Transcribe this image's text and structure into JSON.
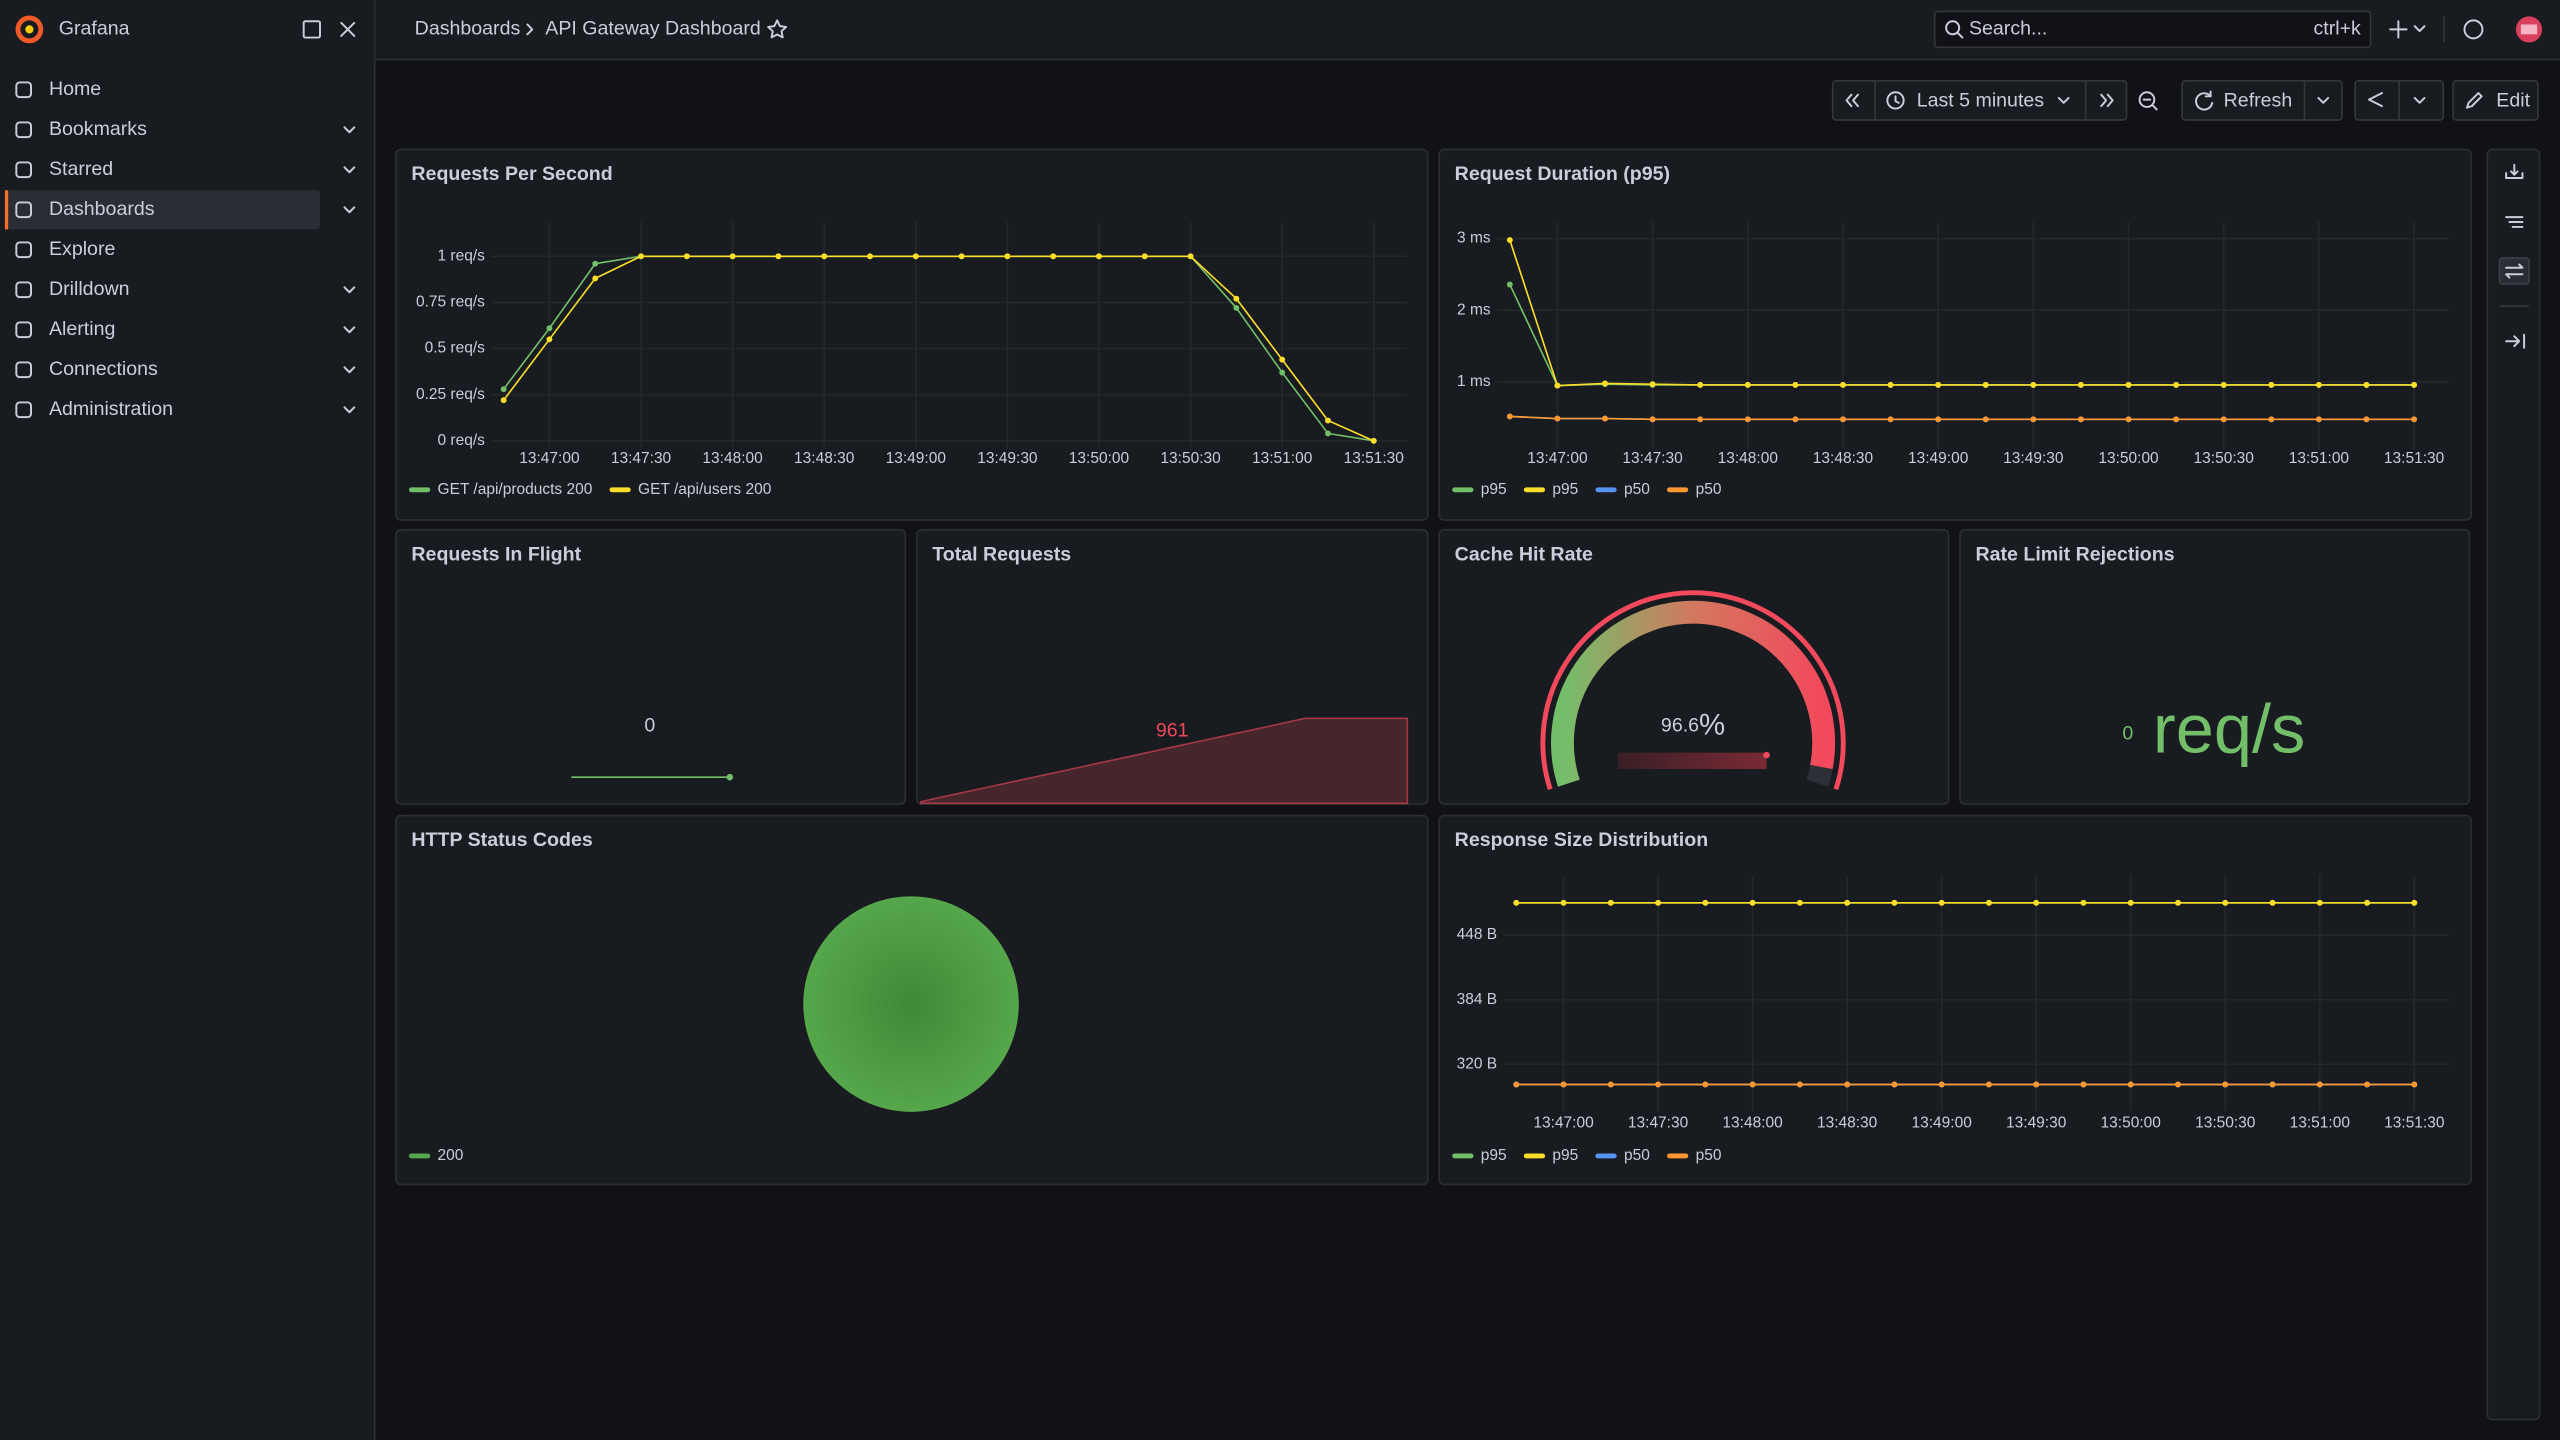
{
  "sidebar": {
    "brand": "Grafana",
    "active": 3,
    "nav": [
      {
        "label": "Home",
        "expandable": false
      },
      {
        "label": "Bookmarks",
        "expandable": true
      },
      {
        "label": "Starred",
        "expandable": true
      },
      {
        "label": "Dashboards",
        "expandable": true
      },
      {
        "label": "Explore",
        "expandable": false
      },
      {
        "label": "Drilldown",
        "expandable": true
      },
      {
        "label": "Alerting",
        "expandable": true
      },
      {
        "label": "Connections",
        "expandable": true
      },
      {
        "label": "Administration",
        "expandable": true
      }
    ]
  },
  "topbar": {
    "breadcrumbs": [
      "Dashboards",
      "API Gateway Dashboard"
    ],
    "search": "Search...",
    "shortcut": "ctrl+k"
  },
  "toolbar": {
    "time_range": "Last 5 minutes",
    "refresh": "Refresh",
    "edit": "Edit"
  },
  "panels": [
    {
      "title": "Requests Per Second",
      "chart_data": {
        "type": "line",
        "grid": true,
        "legend": "bottom-left",
        "x": [
          "13:46:45",
          "13:47:00",
          "13:47:15",
          "13:47:30",
          "13:47:45",
          "13:48:00",
          "13:48:15",
          "13:48:30",
          "13:48:45",
          "13:49:00",
          "13:49:15",
          "13:49:30",
          "13:49:45",
          "13:50:00",
          "13:50:15",
          "13:50:30",
          "13:50:45",
          "13:51:00",
          "13:51:15",
          "13:51:30"
        ],
        "xlim": [
          "13:46:41",
          "13:51:41"
        ],
        "xticks": [
          "13:47:00",
          "13:47:30",
          "13:48:00",
          "13:48:30",
          "13:49:00",
          "13:49:30",
          "13:50:00",
          "13:50:30",
          "13:51:00",
          "13:51:30"
        ],
        "ylim": [
          0,
          1.15
        ],
        "yticks": [
          {
            "value": 0,
            "label": "0 req/s"
          },
          {
            "value": 0.25,
            "label": "0.25 req/s"
          },
          {
            "value": 0.5,
            "label": "0.5 req/s"
          },
          {
            "value": 0.75,
            "label": "0.75 req/s"
          },
          {
            "value": 1,
            "label": "1 req/s"
          }
        ],
        "series": [
          {
            "name": "GET /api/products 200",
            "color": "#73bf69",
            "values": [
              0.28,
              0.61,
              0.96,
              1,
              1,
              1,
              1,
              1,
              1,
              1,
              1,
              1,
              1,
              1,
              1,
              1,
              0.72,
              0.37,
              0.04,
              0
            ]
          },
          {
            "name": "GET /api/users 200",
            "color": "#fade2a",
            "values": [
              0.22,
              0.55,
              0.88,
              1,
              1,
              1,
              1,
              1,
              1,
              1,
              1,
              1,
              1,
              1,
              1,
              1,
              0.77,
              0.44,
              0.11,
              0
            ]
          }
        ]
      }
    },
    {
      "title": "Request Duration (p95)",
      "chart_data": {
        "type": "line",
        "grid": true,
        "legend": "bottom-left",
        "x": [
          "13:46:45",
          "13:47:00",
          "13:47:15",
          "13:47:30",
          "13:47:45",
          "13:48:00",
          "13:48:15",
          "13:48:30",
          "13:48:45",
          "13:49:00",
          "13:49:15",
          "13:49:30",
          "13:49:45",
          "13:50:00",
          "13:50:15",
          "13:50:30",
          "13:50:45",
          "13:51:00",
          "13:51:15",
          "13:51:30"
        ],
        "xlim": [
          "13:46:41",
          "13:51:41"
        ],
        "xticks": [
          "13:47:00",
          "13:47:30",
          "13:48:00",
          "13:48:30",
          "13:49:00",
          "13:49:30",
          "13:50:00",
          "13:50:30",
          "13:51:00",
          "13:51:30"
        ],
        "ylim": [
          0.18,
          3.14
        ],
        "yticks": [
          {
            "value": 1,
            "label": "1 ms"
          },
          {
            "value": 2,
            "label": "2 ms"
          },
          {
            "value": 3,
            "label": "3 ms"
          }
        ],
        "series": [
          {
            "name": "p95",
            "color": "#73bf69",
            "values": [
              2.36,
              0.95,
              0.97,
              0.96,
              0.96,
              0.96,
              0.96,
              0.96,
              0.96,
              0.96,
              0.96,
              0.96,
              0.96,
              0.96,
              0.96,
              0.96,
              0.96,
              0.96,
              0.96,
              0.96
            ]
          },
          {
            "name": "p95",
            "color": "#fade2a",
            "values": [
              2.98,
              0.95,
              0.98,
              0.97,
              0.96,
              0.96,
              0.96,
              0.96,
              0.96,
              0.96,
              0.96,
              0.96,
              0.96,
              0.96,
              0.96,
              0.96,
              0.96,
              0.96,
              0.96,
              0.96
            ]
          },
          {
            "name": "p50",
            "color": "#5794f2",
            "values": [
              0.52,
              0.49,
              0.49,
              0.48,
              0.48,
              0.48,
              0.48,
              0.48,
              0.48,
              0.48,
              0.48,
              0.48,
              0.48,
              0.48,
              0.48,
              0.48,
              0.48,
              0.48,
              0.48,
              0.48
            ]
          },
          {
            "name": "p50",
            "color": "#ff9830",
            "values": [
              0.52,
              0.49,
              0.49,
              0.48,
              0.48,
              0.48,
              0.48,
              0.48,
              0.48,
              0.48,
              0.48,
              0.48,
              0.48,
              0.48,
              0.48,
              0.48,
              0.48,
              0.48,
              0.48,
              0.48
            ]
          }
        ]
      }
    },
    {
      "title": "Requests In Flight",
      "chart_data": {
        "type": "stat",
        "value": 0,
        "text_color": "#ccccdc",
        "color": "#73bf69",
        "sparkline_style": "line",
        "sparkline": [
          0,
          0,
          0,
          0,
          0,
          0,
          0,
          0,
          0,
          0,
          0,
          0,
          0,
          0,
          0,
          0,
          0,
          0,
          0,
          0
        ]
      }
    },
    {
      "title": "Total Requests",
      "chart_data": {
        "type": "stat",
        "value": 961,
        "text_color": "#f2495c",
        "color": "#f2495c",
        "sparkline_style": "area",
        "sparkline": [
          0,
          64,
          128,
          192,
          256,
          320,
          384,
          448,
          512,
          576,
          640,
          704,
          768,
          832,
          896,
          961,
          961,
          961,
          961,
          961
        ]
      }
    },
    {
      "title": "Cache Hit Rate",
      "chart_data": {
        "type": "gauge",
        "value": 96.6,
        "unit": "%",
        "min": 0,
        "max": 100,
        "color": "#f2495c"
      }
    },
    {
      "title": "Rate Limit Rejections",
      "chart_data": {
        "type": "stat",
        "value": 0,
        "unit": "req/s",
        "text_color": "#73bf69",
        "color": "#73bf69"
      }
    },
    {
      "title": "HTTP Status Codes",
      "chart_data": {
        "type": "pie",
        "legend": "bottom-left",
        "categories": [
          "200"
        ],
        "values": [
          100
        ],
        "colors": [
          "#56a64b"
        ]
      }
    },
    {
      "title": "Response Size Distribution",
      "chart_data": {
        "type": "line",
        "grid": true,
        "legend": "bottom-left",
        "x": [
          "13:46:45",
          "13:47:00",
          "13:47:15",
          "13:47:30",
          "13:47:45",
          "13:48:00",
          "13:48:15",
          "13:48:30",
          "13:48:45",
          "13:49:00",
          "13:49:15",
          "13:49:30",
          "13:49:45",
          "13:50:00",
          "13:50:15",
          "13:50:30",
          "13:50:45",
          "13:51:00",
          "13:51:15",
          "13:51:30"
        ],
        "xlim": [
          "13:46:41",
          "13:51:41"
        ],
        "xticks": [
          "13:47:00",
          "13:47:30",
          "13:48:00",
          "13:48:30",
          "13:49:00",
          "13:49:30",
          "13:50:00",
          "13:50:30",
          "13:51:00",
          "13:51:30"
        ],
        "ylim": [
          281,
          501
        ],
        "yticks": [
          {
            "value": 320,
            "label": "320 B"
          },
          {
            "value": 384,
            "label": "384 B"
          },
          {
            "value": 448,
            "label": "448 B"
          }
        ],
        "series": [
          {
            "name": "p95",
            "color": "#73bf69",
            "values": [
              480,
              480,
              480,
              480,
              480,
              480,
              480,
              480,
              480,
              480,
              480,
              480,
              480,
              480,
              480,
              480,
              480,
              480,
              480,
              480
            ]
          },
          {
            "name": "p95",
            "color": "#fade2a",
            "values": [
              480,
              480,
              480,
              480,
              480,
              480,
              480,
              480,
              480,
              480,
              480,
              480,
              480,
              480,
              480,
              480,
              480,
              480,
              480,
              480
            ]
          },
          {
            "name": "p50",
            "color": "#5794f2",
            "values": [
              300,
              300,
              300,
              300,
              300,
              300,
              300,
              300,
              300,
              300,
              300,
              300,
              300,
              300,
              300,
              300,
              300,
              300,
              300,
              300
            ]
          },
          {
            "name": "p50",
            "color": "#ff9830",
            "values": [
              300,
              300,
              300,
              300,
              300,
              300,
              300,
              300,
              300,
              300,
              300,
              300,
              300,
              300,
              300,
              300,
              300,
              300,
              300,
              300
            ]
          }
        ]
      }
    }
  ]
}
